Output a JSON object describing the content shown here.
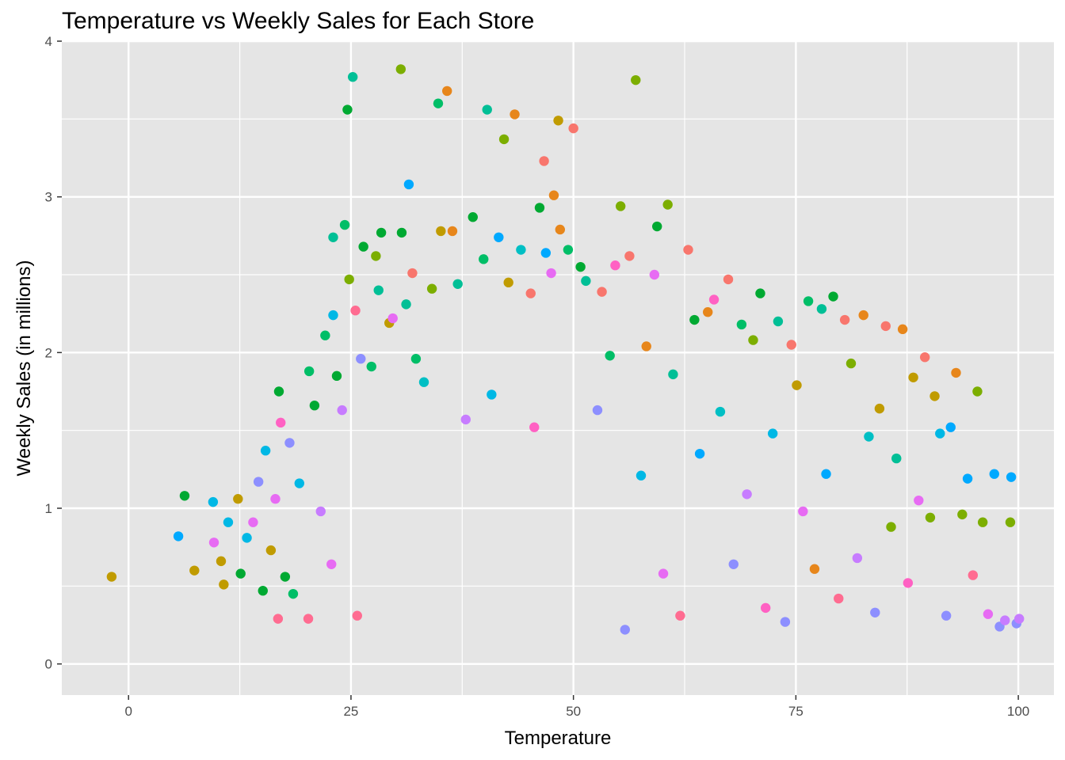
{
  "chart_data": {
    "type": "scatter",
    "title": "Temperature vs Weekly Sales for Each Store",
    "xlabel": "Temperature",
    "ylabel": "Weekly Sales (in millions)",
    "xlim": [
      -7.5,
      104
    ],
    "ylim": [
      -0.2,
      4.0
    ],
    "x_ticks": [
      0,
      25,
      50,
      75,
      100
    ],
    "y_ticks": [
      0,
      1,
      2,
      3,
      4
    ],
    "grid": true,
    "legend": "none",
    "background": "#e5e5e5",
    "grid_color": "#ffffff",
    "series_colors": [
      "#F8766D",
      "#E7861B",
      "#C09B00",
      "#7CAE00",
      "#00A932",
      "#00BE67",
      "#00BF96",
      "#00BFC4",
      "#00B8E5",
      "#00A9FF",
      "#8D8FFF",
      "#C77CFF",
      "#E76BF3",
      "#FF61C3",
      "#FF6C91"
    ],
    "points": [
      [
        -1.9,
        0.56,
        2
      ],
      [
        5.6,
        0.82,
        9
      ],
      [
        6.3,
        1.08,
        4
      ],
      [
        7.4,
        0.6,
        2
      ],
      [
        9.5,
        1.04,
        8
      ],
      [
        9.6,
        0.78,
        12
      ],
      [
        10.4,
        0.66,
        2
      ],
      [
        10.7,
        0.51,
        2
      ],
      [
        11.2,
        0.91,
        8
      ],
      [
        12.3,
        1.06,
        2
      ],
      [
        12.6,
        0.58,
        4
      ],
      [
        13.3,
        0.81,
        8
      ],
      [
        14.0,
        0.91,
        12
      ],
      [
        14.6,
        1.17,
        10
      ],
      [
        15.1,
        0.47,
        4
      ],
      [
        15.4,
        1.37,
        8
      ],
      [
        16.0,
        0.73,
        2
      ],
      [
        16.5,
        1.06,
        12
      ],
      [
        16.8,
        0.29,
        14
      ],
      [
        16.9,
        1.75,
        4
      ],
      [
        17.1,
        1.55,
        13
      ],
      [
        17.6,
        0.56,
        4
      ],
      [
        18.1,
        1.42,
        10
      ],
      [
        18.5,
        0.45,
        5
      ],
      [
        19.2,
        1.16,
        8
      ],
      [
        20.2,
        0.29,
        14
      ],
      [
        20.3,
        1.88,
        5
      ],
      [
        20.9,
        1.66,
        4
      ],
      [
        21.6,
        0.98,
        11
      ],
      [
        22.1,
        2.11,
        5
      ],
      [
        22.8,
        0.64,
        12
      ],
      [
        23.0,
        2.24,
        8
      ],
      [
        23.0,
        2.74,
        6
      ],
      [
        23.4,
        1.85,
        4
      ],
      [
        24.0,
        1.63,
        11
      ],
      [
        24.3,
        2.82,
        5
      ],
      [
        24.6,
        3.56,
        4
      ],
      [
        24.8,
        2.47,
        3
      ],
      [
        25.2,
        3.77,
        6
      ],
      [
        25.5,
        2.27,
        14
      ],
      [
        25.7,
        0.31,
        14
      ],
      [
        26.1,
        1.96,
        10
      ],
      [
        26.4,
        2.68,
        4
      ],
      [
        27.3,
        1.91,
        5
      ],
      [
        27.8,
        2.62,
        3
      ],
      [
        28.1,
        2.4,
        6
      ],
      [
        28.4,
        2.77,
        4
      ],
      [
        29.3,
        2.19,
        2
      ],
      [
        29.7,
        2.22,
        12
      ],
      [
        30.6,
        3.82,
        3
      ],
      [
        30.7,
        2.77,
        4
      ],
      [
        31.2,
        2.31,
        6
      ],
      [
        31.5,
        3.08,
        9
      ],
      [
        31.9,
        2.51,
        0
      ],
      [
        32.3,
        1.96,
        5
      ],
      [
        33.2,
        1.81,
        7
      ],
      [
        34.1,
        2.41,
        3
      ],
      [
        34.8,
        3.6,
        5
      ],
      [
        35.1,
        2.78,
        2
      ],
      [
        35.8,
        3.68,
        1
      ],
      [
        36.4,
        2.78,
        1
      ],
      [
        37.0,
        2.44,
        6
      ],
      [
        37.9,
        1.57,
        11
      ],
      [
        38.7,
        2.87,
        4
      ],
      [
        39.9,
        2.6,
        5
      ],
      [
        40.3,
        3.56,
        6
      ],
      [
        40.8,
        1.73,
        8
      ],
      [
        41.6,
        2.74,
        9
      ],
      [
        42.2,
        3.37,
        3
      ],
      [
        42.7,
        2.45,
        2
      ],
      [
        43.4,
        3.53,
        1
      ],
      [
        44.1,
        2.66,
        7
      ],
      [
        45.2,
        2.38,
        0
      ],
      [
        45.6,
        1.52,
        13
      ],
      [
        46.2,
        2.93,
        4
      ],
      [
        46.7,
        3.23,
        0
      ],
      [
        46.9,
        2.64,
        9
      ],
      [
        47.5,
        2.51,
        12
      ],
      [
        47.8,
        3.01,
        1
      ],
      [
        48.3,
        3.49,
        2
      ],
      [
        48.5,
        2.79,
        1
      ],
      [
        49.4,
        2.66,
        5
      ],
      [
        50.0,
        3.44,
        0
      ],
      [
        50.8,
        2.55,
        4
      ],
      [
        51.4,
        2.46,
        6
      ],
      [
        52.7,
        1.63,
        10
      ],
      [
        53.2,
        2.39,
        0
      ],
      [
        54.1,
        1.98,
        5
      ],
      [
        54.7,
        2.56,
        13
      ],
      [
        55.3,
        2.94,
        3
      ],
      [
        55.8,
        0.22,
        10
      ],
      [
        56.3,
        2.62,
        0
      ],
      [
        57.0,
        3.75,
        3
      ],
      [
        57.6,
        1.21,
        8
      ],
      [
        58.2,
        2.04,
        1
      ],
      [
        59.1,
        2.5,
        12
      ],
      [
        59.4,
        2.81,
        4
      ],
      [
        60.1,
        0.58,
        12
      ],
      [
        60.6,
        2.95,
        3
      ],
      [
        61.2,
        1.86,
        6
      ],
      [
        62.0,
        0.31,
        14
      ],
      [
        62.9,
        2.66,
        0
      ],
      [
        63.6,
        2.21,
        4
      ],
      [
        64.2,
        1.35,
        9
      ],
      [
        65.1,
        2.26,
        1
      ],
      [
        65.8,
        2.34,
        13
      ],
      [
        66.5,
        1.62,
        7
      ],
      [
        67.4,
        2.47,
        0
      ],
      [
        68.0,
        0.64,
        10
      ],
      [
        68.9,
        2.18,
        5
      ],
      [
        69.5,
        1.09,
        11
      ],
      [
        70.2,
        2.08,
        3
      ],
      [
        71.0,
        2.38,
        4
      ],
      [
        71.6,
        0.36,
        13
      ],
      [
        72.4,
        1.48,
        8
      ],
      [
        73.0,
        2.2,
        6
      ],
      [
        73.8,
        0.27,
        10
      ],
      [
        74.5,
        2.05,
        0
      ],
      [
        75.1,
        1.79,
        2
      ],
      [
        75.8,
        0.98,
        12
      ],
      [
        76.4,
        2.33,
        5
      ],
      [
        77.1,
        0.61,
        1
      ],
      [
        77.9,
        2.28,
        6
      ],
      [
        78.4,
        1.22,
        9
      ],
      [
        79.2,
        2.36,
        4
      ],
      [
        79.8,
        0.42,
        14
      ],
      [
        80.5,
        2.21,
        0
      ],
      [
        81.2,
        1.93,
        3
      ],
      [
        81.9,
        0.68,
        11
      ],
      [
        82.6,
        2.24,
        1
      ],
      [
        83.2,
        1.46,
        7
      ],
      [
        83.9,
        0.33,
        10
      ],
      [
        84.4,
        1.64,
        2
      ],
      [
        85.1,
        2.17,
        0
      ],
      [
        85.7,
        0.88,
        3
      ],
      [
        86.3,
        1.32,
        6
      ],
      [
        87.0,
        2.15,
        1
      ],
      [
        87.6,
        0.52,
        13
      ],
      [
        88.2,
        1.84,
        2
      ],
      [
        88.8,
        1.05,
        12
      ],
      [
        89.5,
        1.97,
        0
      ],
      [
        90.1,
        0.94,
        3
      ],
      [
        90.6,
        1.72,
        2
      ],
      [
        91.2,
        1.48,
        8
      ],
      [
        91.9,
        0.31,
        10
      ],
      [
        92.4,
        1.52,
        9
      ],
      [
        93.0,
        1.87,
        1
      ],
      [
        93.7,
        0.96,
        3
      ],
      [
        94.3,
        1.19,
        9
      ],
      [
        94.9,
        0.57,
        14
      ],
      [
        95.4,
        1.75,
        3
      ],
      [
        96.0,
        0.91,
        3
      ],
      [
        96.6,
        0.32,
        12
      ],
      [
        97.3,
        1.22,
        9
      ],
      [
        97.9,
        0.24,
        10
      ],
      [
        98.5,
        0.28,
        11
      ],
      [
        99.1,
        0.91,
        3
      ],
      [
        99.2,
        1.2,
        9
      ],
      [
        99.8,
        0.26,
        10
      ],
      [
        100.1,
        0.29,
        11
      ]
    ]
  }
}
